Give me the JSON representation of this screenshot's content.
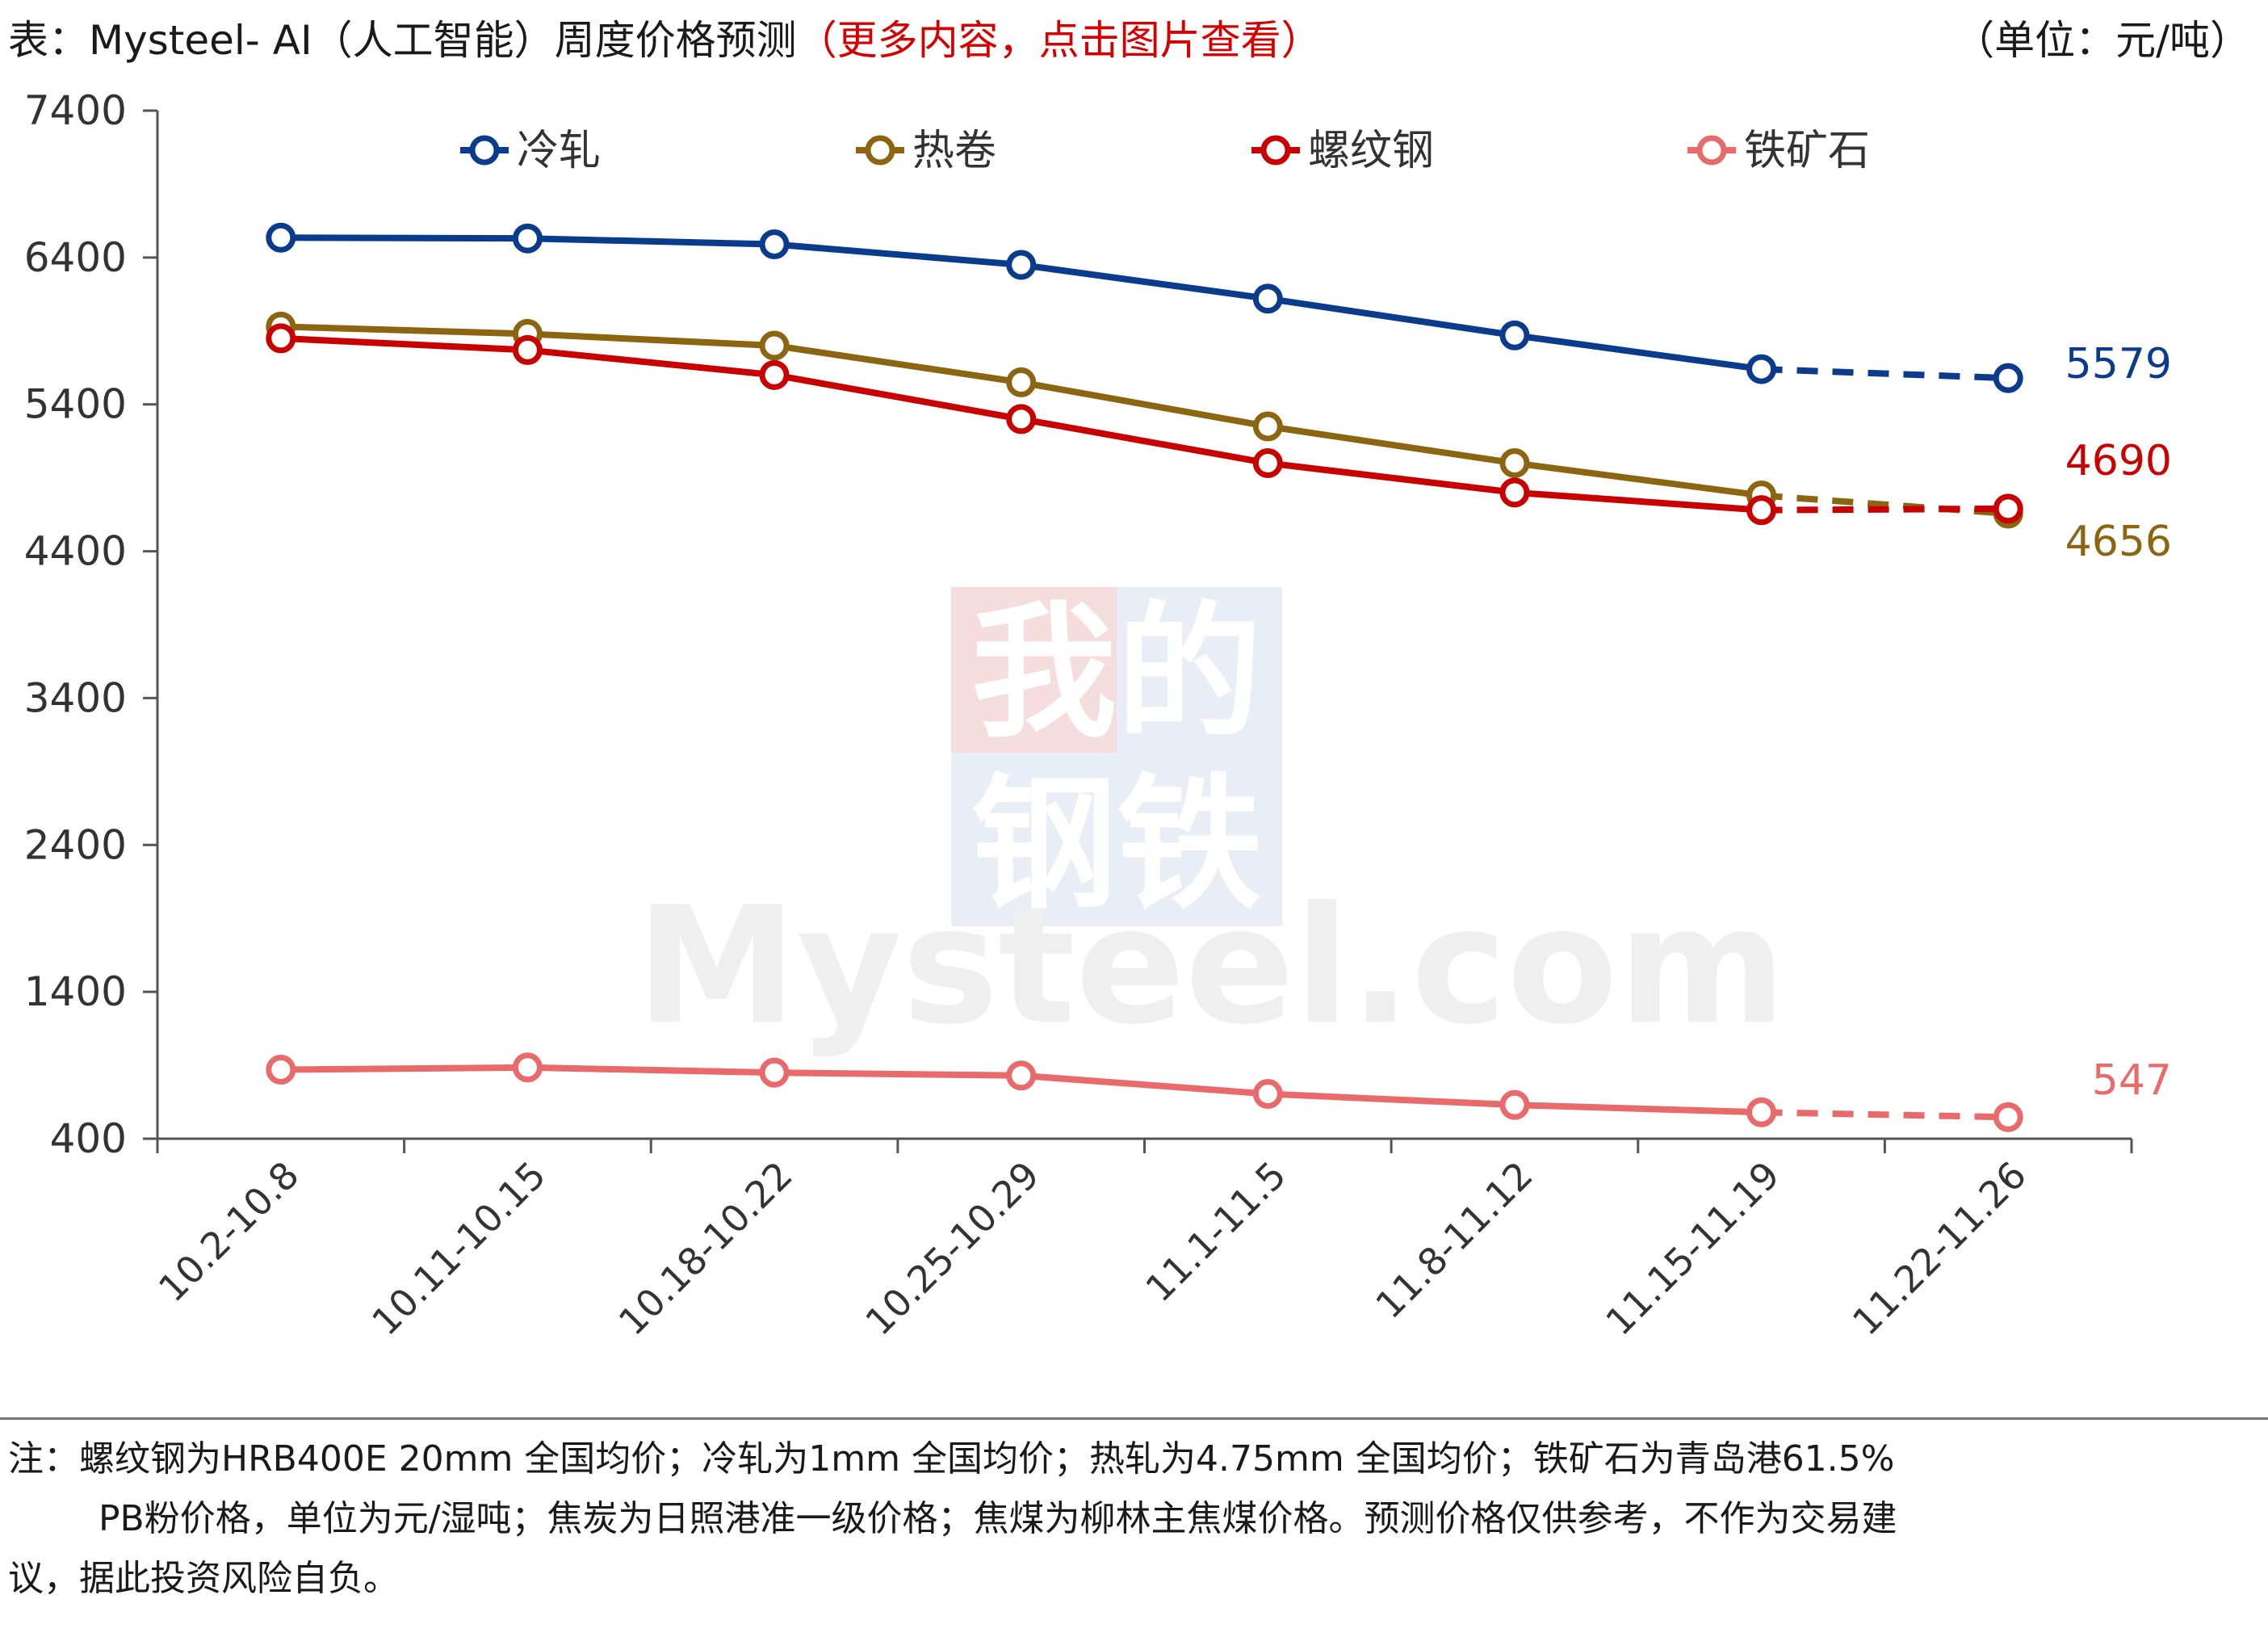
{
  "header": {
    "title": "表：Mysteel- AI（人工智能）周度价格预测",
    "title_link": "（更多内容，点击图片查看）",
    "unit": "（单位：元/吨）"
  },
  "watermark": {
    "brand_cn_1": "我的",
    "brand_cn_2": "钢铁",
    "brand_en": "Mysteel.com"
  },
  "colors": {
    "cold_rolled": "#0b3b8c",
    "hot_coil": "#8b6510",
    "rebar": "#c80000",
    "iron_ore": "#e86a6a",
    "link_red": "#d40000"
  },
  "chart_data": {
    "type": "line",
    "title": "",
    "xlabel": "",
    "ylabel": "",
    "ylim": [
      400,
      7400
    ],
    "yticks": [
      400,
      1400,
      2400,
      3400,
      4400,
      5400,
      6400,
      7400
    ],
    "categories": [
      "10.2-10.8",
      "10.11-10.15",
      "10.18-10.22",
      "10.25-10.29",
      "11.1-11.5",
      "11.8-11.12",
      "11.15-11.19",
      "11.22-11.26"
    ],
    "forecast_from_index": 6,
    "legend_position": "top",
    "grid": false,
    "series": [
      {
        "name": "冷轧",
        "color_key": "cold_rolled",
        "values": [
          6535,
          6530,
          6490,
          6350,
          6120,
          5870,
          5640,
          5579
        ],
        "end_label": "5579"
      },
      {
        "name": "热卷",
        "color_key": "hot_coil",
        "values": [
          5930,
          5880,
          5800,
          5550,
          5250,
          5000,
          4780,
          4656
        ],
        "end_label": "4656"
      },
      {
        "name": "螺纹钢",
        "color_key": "rebar",
        "values": [
          5850,
          5770,
          5600,
          5300,
          5000,
          4800,
          4680,
          4690
        ],
        "end_label": "4690"
      },
      {
        "name": "铁矿石",
        "color_key": "iron_ore",
        "values": [
          870,
          885,
          850,
          830,
          705,
          630,
          580,
          547
        ],
        "end_label": "547"
      }
    ]
  },
  "note": {
    "line1": "注：螺纹钢为HRB400E 20mm 全国均价；冷轧为1mm 全国均价；热轧为4.75mm 全国均价；铁矿石为青岛港61.5%",
    "line2": "PB粉价格，单位为元/湿吨；焦炭为日照港准一级价格；焦煤为柳林主焦煤价格。预测价格仅供参考，不作为交易建",
    "line3": "议，据此投资风险自负。"
  }
}
